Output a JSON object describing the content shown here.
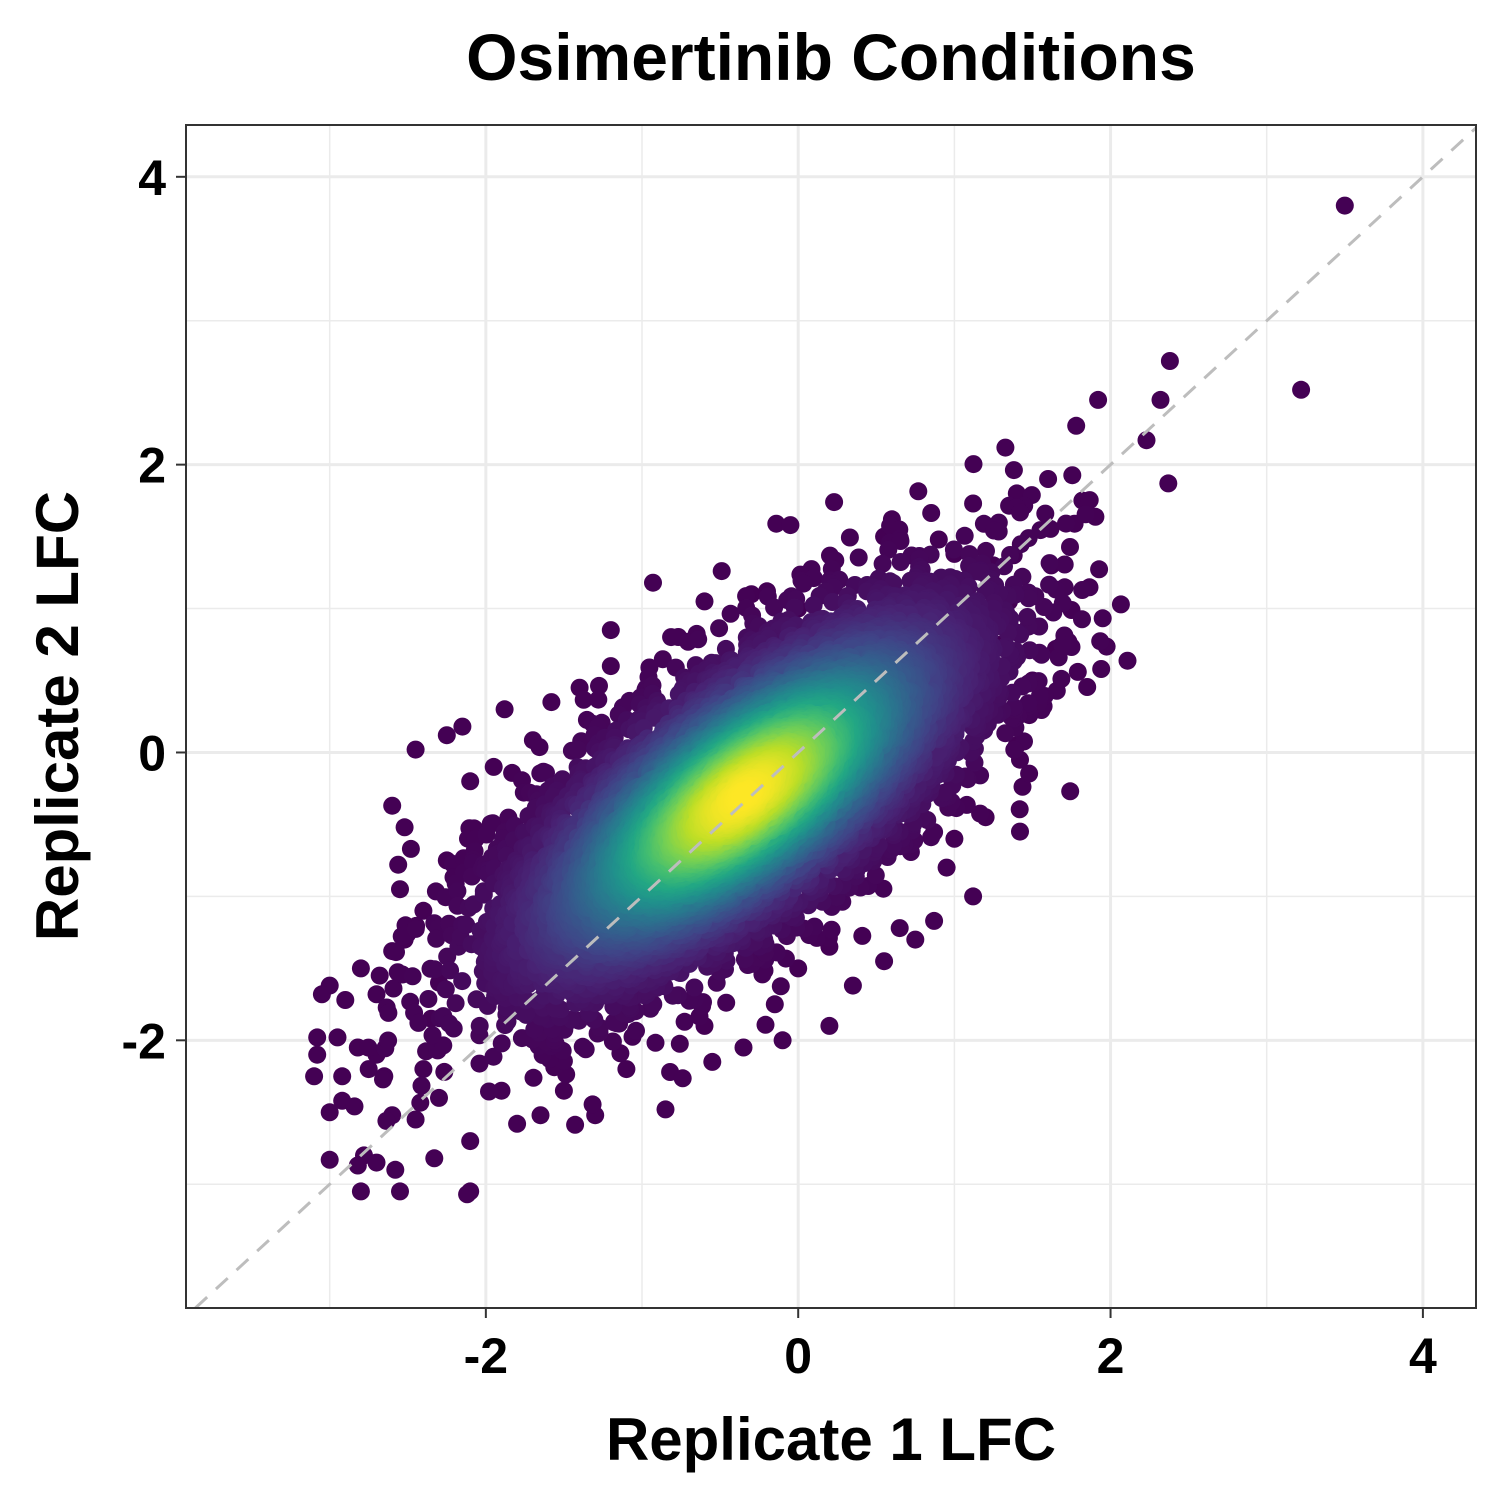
{
  "chart_data": {
    "type": "scatter",
    "title": "Osimertinib Conditions",
    "xlabel": "Replicate 1 LFC",
    "ylabel": "Replicate 2 LFC",
    "xlim": [
      -3.92,
      4.34
    ],
    "ylim": [
      -3.86,
      4.36
    ],
    "x_ticks": [
      -2,
      0,
      2,
      4
    ],
    "y_ticks": [
      -2,
      0,
      2,
      4
    ],
    "x_tick_labels": [
      "-2",
      "0",
      "2",
      "4"
    ],
    "y_tick_labels": [
      "-2",
      "0",
      "2",
      "4"
    ],
    "grid": true,
    "legend": "none",
    "reference_line": {
      "type": "identity",
      "style": "dashed",
      "color": "#bdbdbd"
    },
    "color_scale": "viridis (point density)",
    "colors": {
      "low_density": "#440154",
      "high_density": "#fde725",
      "panel_border": "#333333",
      "grid": "#ebebeb"
    },
    "density_cloud": {
      "center": [
        -0.35,
        -0.3
      ],
      "sd_major": 0.88,
      "sd_minor": 0.36,
      "angle_deg": 40,
      "n_points": 9000
    },
    "points": [
      [
        3.5,
        3.8
      ],
      [
        2.38,
        2.72
      ],
      [
        3.22,
        2.52
      ],
      [
        1.92,
        2.45
      ],
      [
        2.32,
        2.45
      ],
      [
        1.78,
        2.27
      ],
      [
        2.23,
        2.17
      ],
      [
        2.37,
        1.87
      ],
      [
        1.6,
        1.9
      ],
      [
        1.82,
        1.75
      ],
      [
        1.4,
        1.8
      ],
      [
        1.12,
        1.73
      ],
      [
        1.77,
        1.59
      ],
      [
        0.23,
        1.74
      ],
      [
        -0.14,
        1.59
      ],
      [
        -0.05,
        1.58
      ],
      [
        0.6,
        1.62
      ],
      [
        1.62,
        1.3
      ],
      [
        1.38,
        1.37
      ],
      [
        -0.93,
        1.18
      ],
      [
        -0.49,
        1.26
      ],
      [
        1.75,
        0.99
      ],
      [
        1.94,
        0.58
      ],
      [
        1.79,
        0.56
      ],
      [
        1.73,
        0.77
      ],
      [
        1.65,
        0.72
      ],
      [
        1.5,
        0.5
      ],
      [
        1.48,
        0.26
      ],
      [
        1.4,
        0.05
      ],
      [
        1.42,
        -0.05
      ],
      [
        1.42,
        -0.55
      ],
      [
        1.2,
        -0.45
      ],
      [
        1.12,
        -1.0
      ],
      [
        0.87,
        -1.17
      ],
      [
        -2.25,
        0.12
      ],
      [
        -2.15,
        0.18
      ],
      [
        -2.45,
        0.02
      ],
      [
        -2.6,
        -0.37
      ],
      [
        -2.52,
        -0.52
      ],
      [
        -2.48,
        -0.67
      ],
      [
        -2.55,
        -0.95
      ],
      [
        -2.52,
        -1.3
      ],
      [
        -2.6,
        -1.38
      ],
      [
        -2.8,
        -1.5
      ],
      [
        -2.68,
        -1.55
      ],
      [
        -3.0,
        -1.62
      ],
      [
        -3.05,
        -1.68
      ],
      [
        -2.9,
        -1.72
      ],
      [
        -2.7,
        -1.68
      ],
      [
        -3.08,
        -1.98
      ],
      [
        -2.95,
        -1.98
      ],
      [
        -2.82,
        -2.05
      ],
      [
        -3.08,
        -2.1
      ],
      [
        -2.7,
        -2.1
      ],
      [
        -3.1,
        -2.25
      ],
      [
        -2.92,
        -2.25
      ],
      [
        -2.75,
        -2.2
      ],
      [
        -2.65,
        -2.25
      ],
      [
        -3.0,
        -2.5
      ],
      [
        -2.92,
        -2.42
      ],
      [
        -2.6,
        -2.52
      ],
      [
        -2.45,
        -2.55
      ],
      [
        -3.0,
        -2.83
      ],
      [
        -2.78,
        -2.8
      ],
      [
        -2.82,
        -2.87
      ],
      [
        -2.7,
        -2.85
      ],
      [
        -2.58,
        -2.9
      ],
      [
        -2.33,
        -2.82
      ],
      [
        -2.8,
        -3.05
      ],
      [
        -2.55,
        -3.05
      ],
      [
        -2.1,
        -3.05
      ],
      [
        -2.12,
        -3.07
      ],
      [
        -2.1,
        -2.7
      ],
      [
        -1.8,
        -2.58
      ],
      [
        -1.65,
        -2.52
      ],
      [
        -1.3,
        -2.52
      ],
      [
        -0.85,
        -2.48
      ],
      [
        -0.82,
        -2.22
      ],
      [
        -0.55,
        -2.15
      ],
      [
        -0.35,
        -2.05
      ],
      [
        -0.1,
        -2.0
      ],
      [
        0.2,
        -1.9
      ],
      [
        0.35,
        -1.62
      ],
      [
        0.2,
        -1.35
      ],
      [
        0.65,
        -1.22
      ],
      [
        -1.88,
        0.3
      ],
      [
        -1.58,
        0.35
      ],
      [
        -1.4,
        0.45
      ],
      [
        -1.2,
        0.6
      ],
      [
        -1.2,
        0.85
      ],
      [
        -0.6,
        1.05
      ],
      [
        -0.3,
        1.1
      ],
      [
        -0.2,
        1.12
      ],
      [
        0.0,
        1.0
      ],
      [
        0.55,
        1.5
      ],
      [
        0.9,
        1.48
      ],
      [
        1.0,
        1.38
      ],
      [
        1.25,
        1.3
      ],
      [
        1.35,
        1.05
      ],
      [
        1.1,
        0.9
      ],
      [
        1.3,
        0.75
      ],
      [
        1.15,
        0.35
      ],
      [
        1.0,
        -0.6
      ],
      [
        0.95,
        -0.8
      ],
      [
        0.75,
        -1.3
      ],
      [
        0.55,
        -1.45
      ],
      [
        0.0,
        -1.5
      ],
      [
        -0.15,
        -1.75
      ],
      [
        -0.6,
        -1.9
      ],
      [
        -1.1,
        -2.2
      ],
      [
        -1.5,
        -2.35
      ],
      [
        -1.9,
        -2.35
      ],
      [
        -2.3,
        -2.4
      ],
      [
        -2.4,
        -2.2
      ],
      [
        -2.35,
        -1.85
      ],
      [
        -2.3,
        -1.6
      ],
      [
        -2.4,
        -1.1
      ],
      [
        -2.25,
        -0.75
      ],
      [
        -2.1,
        -0.2
      ],
      [
        -1.95,
        -0.1
      ]
    ]
  }
}
